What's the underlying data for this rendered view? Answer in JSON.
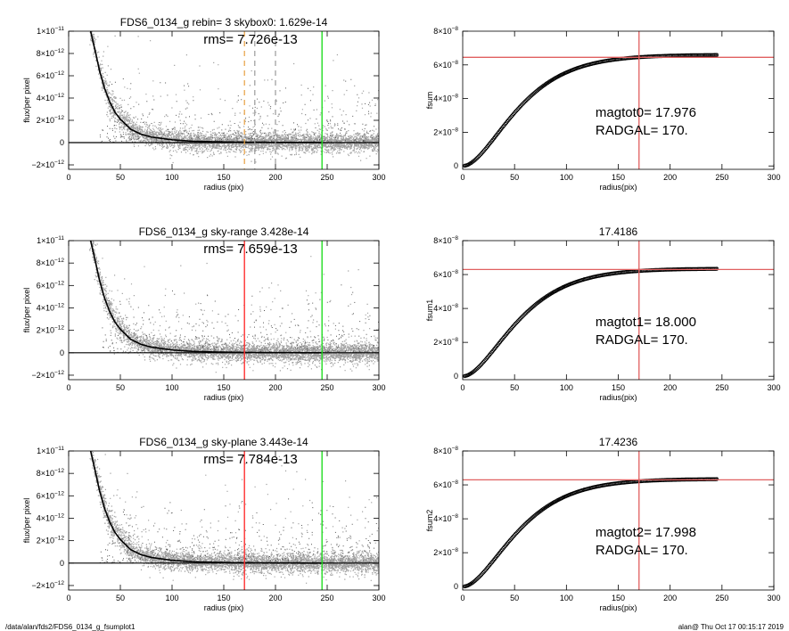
{
  "footer": {
    "path": "/data/alan/fds2/FDS6_0134_g_fsumplot1",
    "stamp": "alan@  Thu Oct 17 00:15:17 2019"
  },
  "colors": {
    "points": "#a0a0a0",
    "profile": "#000000",
    "sky_region": "#ff3030",
    "outer": "#22dd22",
    "boxes": "#e8a040",
    "aux": "#9a9a9a",
    "fit": "#e06060"
  },
  "chart_data": [
    {
      "type": "scatter",
      "title": "FDS6_0134_g rebin= 3    skybox0:  1.629e-14",
      "annotation": "rms= 7.726e-13",
      "xlabel": "radius (pix)",
      "ylabel": "flux/per pixel",
      "xlim": [
        0,
        300
      ],
      "ylim": [
        -2.4e-12,
        1e-11
      ],
      "xticks": [
        "0",
        "50",
        "100",
        "150",
        "200",
        "250",
        "300"
      ],
      "yticks": [
        {
          "value": -2e-12,
          "label": "−2×10",
          "exp": "−12"
        },
        {
          "value": 0,
          "label": "0",
          "exp": ""
        },
        {
          "value": 2e-12,
          "label": "2×10",
          "exp": "−12"
        },
        {
          "value": 4e-12,
          "label": "4×10",
          "exp": "−12"
        },
        {
          "value": 6e-12,
          "label": "6×10",
          "exp": "−12"
        },
        {
          "value": 8e-12,
          "label": "8×10",
          "exp": "−12"
        },
        {
          "value": 1e-11,
          "label": "1×10",
          "exp": "−11"
        }
      ],
      "profile": {
        "x": [
          20,
          25,
          30,
          35,
          40,
          45,
          50,
          60,
          70,
          80,
          100,
          120,
          150,
          200,
          245
        ],
        "y": [
          1.05e-11,
          8.5e-12,
          6.4e-12,
          4.8e-12,
          3.6e-12,
          2.7e-12,
          2.1e-12,
          1.2e-12,
          7.5e-13,
          5e-13,
          2.5e-13,
          1.2e-13,
          6e-14,
          2e-14,
          1e-14
        ]
      },
      "point_cloud": {
        "x_range": [
          2,
          300
        ],
        "scatter_rms": 7.726e-13
      },
      "vlines": [
        {
          "x": 170,
          "style": "dashed",
          "color": "#e8a040"
        },
        {
          "x": 180,
          "style": "dashed",
          "color": "#9a9a9a"
        },
        {
          "x": 200,
          "style": "dashed",
          "color": "#9a9a9a"
        },
        {
          "x": 245,
          "style": "solid",
          "color": "#22dd22"
        }
      ],
      "hlines": [
        {
          "y": 0,
          "color": "#000000"
        }
      ],
      "grid": false
    },
    {
      "type": "scatter",
      "title": "",
      "xlabel": "radius(pix)",
      "ylabel": "fsum",
      "xlim": [
        0,
        300
      ],
      "ylim": [
        -2e-09,
        8e-08
      ],
      "xticks": [
        "0",
        "50",
        "100",
        "150",
        "200",
        "250",
        "300"
      ],
      "yticks": [
        {
          "value": 0,
          "label": "0",
          "exp": ""
        },
        {
          "value": 2e-08,
          "label": "2×10",
          "exp": "−8"
        },
        {
          "value": 4e-08,
          "label": "4×10",
          "exp": "−8"
        },
        {
          "value": 6e-08,
          "label": "6×10",
          "exp": "−8"
        },
        {
          "value": 8e-08,
          "label": "8×10",
          "exp": "−8"
        }
      ],
      "growth_curve": {
        "x_range": [
          2,
          245
        ],
        "asymptote": 6.6e-08,
        "scale_radius": 26
      },
      "crosshair": {
        "x": 170,
        "y": 6.45e-08,
        "color": "#e06060"
      },
      "magtot_label": "magtot0=  17.976",
      "radgal_label": "RADGAL=    170.",
      "grid": false
    },
    {
      "type": "scatter",
      "title": "FDS6_0134_g sky-range  3.428e-14",
      "annotation": "rms= 7.659e-13",
      "xlabel": "radius (pix)",
      "ylabel": "flux/per pixel",
      "xlim": [
        0,
        300
      ],
      "ylim": [
        -2.4e-12,
        1e-11
      ],
      "xticks": [
        "0",
        "50",
        "100",
        "150",
        "200",
        "250",
        "300"
      ],
      "yticks": [
        {
          "value": -2e-12,
          "label": "−2×10",
          "exp": "−12"
        },
        {
          "value": 0,
          "label": "0",
          "exp": ""
        },
        {
          "value": 2e-12,
          "label": "2×10",
          "exp": "−12"
        },
        {
          "value": 4e-12,
          "label": "4×10",
          "exp": "−12"
        },
        {
          "value": 6e-12,
          "label": "6×10",
          "exp": "−12"
        },
        {
          "value": 8e-12,
          "label": "8×10",
          "exp": "−12"
        },
        {
          "value": 1e-11,
          "label": "1×10",
          "exp": "−11"
        }
      ],
      "profile": {
        "x": [
          20,
          25,
          30,
          35,
          40,
          45,
          50,
          60,
          70,
          80,
          100,
          120,
          150,
          200,
          245
        ],
        "y": [
          1.05e-11,
          8.5e-12,
          6.4e-12,
          4.8e-12,
          3.6e-12,
          2.7e-12,
          2.1e-12,
          1.2e-12,
          7.5e-13,
          5e-13,
          2.5e-13,
          1.2e-13,
          5e-14,
          1e-14,
          0
        ]
      },
      "point_cloud": {
        "x_range": [
          2,
          300
        ],
        "scatter_rms": 7.659e-13
      },
      "vlines": [
        {
          "x": 170,
          "style": "solid",
          "color": "#ff3030"
        },
        {
          "x": 245,
          "style": "solid",
          "color": "#22dd22"
        }
      ],
      "hlines": [
        {
          "y": 0,
          "color": "#000000"
        }
      ],
      "grid": false
    },
    {
      "type": "scatter",
      "title": "17.4186",
      "xlabel": "radius(pix)",
      "ylabel": "fsum1",
      "xlim": [
        0,
        300
      ],
      "ylim": [
        -2e-09,
        8e-08
      ],
      "xticks": [
        "0",
        "50",
        "100",
        "150",
        "200",
        "250",
        "300"
      ],
      "yticks": [
        {
          "value": 0,
          "label": "0",
          "exp": ""
        },
        {
          "value": 2e-08,
          "label": "2×10",
          "exp": "−8"
        },
        {
          "value": 4e-08,
          "label": "4×10",
          "exp": "−8"
        },
        {
          "value": 6e-08,
          "label": "6×10",
          "exp": "−8"
        },
        {
          "value": 8e-08,
          "label": "8×10",
          "exp": "−8"
        }
      ],
      "growth_curve": {
        "x_range": [
          2,
          245
        ],
        "asymptote": 6.35e-08,
        "scale_radius": 26
      },
      "crosshair": {
        "x": 170,
        "y": 6.3e-08,
        "color": "#e06060"
      },
      "magtot_label": "magtot1=  18.000",
      "radgal_label": "RADGAL=    170.",
      "grid": false
    },
    {
      "type": "scatter",
      "title": "FDS6_0134_g sky-plane  3.443e-14",
      "annotation": "rms= 7.784e-13",
      "xlabel": "radius (pix)",
      "ylabel": "flux/per pixel",
      "xlim": [
        0,
        300
      ],
      "ylim": [
        -2.4e-12,
        1e-11
      ],
      "xticks": [
        "0",
        "50",
        "100",
        "150",
        "200",
        "250",
        "300"
      ],
      "yticks": [
        {
          "value": -2e-12,
          "label": "−2×10",
          "exp": "−12"
        },
        {
          "value": 0,
          "label": "0",
          "exp": ""
        },
        {
          "value": 2e-12,
          "label": "2×10",
          "exp": "−12"
        },
        {
          "value": 4e-12,
          "label": "4×10",
          "exp": "−12"
        },
        {
          "value": 6e-12,
          "label": "6×10",
          "exp": "−12"
        },
        {
          "value": 8e-12,
          "label": "8×10",
          "exp": "−12"
        },
        {
          "value": 1e-11,
          "label": "1×10",
          "exp": "−11"
        }
      ],
      "profile": {
        "x": [
          20,
          25,
          30,
          35,
          40,
          45,
          50,
          60,
          70,
          80,
          100,
          120,
          150,
          200,
          245
        ],
        "y": [
          1.05e-11,
          8.5e-12,
          6.4e-12,
          4.8e-12,
          3.6e-12,
          2.7e-12,
          2.1e-12,
          1.2e-12,
          7.5e-13,
          5e-13,
          2.5e-13,
          1.2e-13,
          5e-14,
          1e-14,
          0
        ]
      },
      "point_cloud": {
        "x_range": [
          2,
          300
        ],
        "scatter_rms": 7.784e-13
      },
      "vlines": [
        {
          "x": 170,
          "style": "solid",
          "color": "#ff3030"
        },
        {
          "x": 245,
          "style": "solid",
          "color": "#22dd22"
        }
      ],
      "hlines": [
        {
          "y": 0,
          "color": "#000000"
        }
      ],
      "grid": false
    },
    {
      "type": "scatter",
      "title": "17.4236",
      "xlabel": "radius(pix)",
      "ylabel": "fsum2",
      "xlim": [
        0,
        300
      ],
      "ylim": [
        -2e-09,
        8e-08
      ],
      "xticks": [
        "0",
        "50",
        "100",
        "150",
        "200",
        "250",
        "300"
      ],
      "yticks": [
        {
          "value": 0,
          "label": "0",
          "exp": ""
        },
        {
          "value": 2e-08,
          "label": "2×10",
          "exp": "−8"
        },
        {
          "value": 4e-08,
          "label": "4×10",
          "exp": "−8"
        },
        {
          "value": 6e-08,
          "label": "6×10",
          "exp": "−8"
        },
        {
          "value": 8e-08,
          "label": "8×10",
          "exp": "−8"
        }
      ],
      "growth_curve": {
        "x_range": [
          2,
          245
        ],
        "asymptote": 6.35e-08,
        "scale_radius": 26
      },
      "crosshair": {
        "x": 170,
        "y": 6.3e-08,
        "color": "#e06060"
      },
      "magtot_label": "magtot2=  17.998",
      "radgal_label": "RADGAL=    170.",
      "grid": false
    }
  ]
}
